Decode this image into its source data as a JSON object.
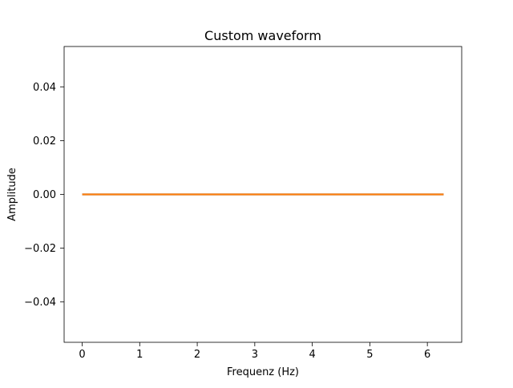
{
  "chart_data": {
    "type": "line",
    "title": "Custom waveform",
    "xlabel": "Frequenz (Hz)",
    "ylabel": "Amplitude",
    "xlim": [
      -0.314,
      6.597
    ],
    "ylim": [
      -0.055,
      0.055
    ],
    "xticks": [
      0,
      1,
      2,
      3,
      4,
      5,
      6
    ],
    "xtick_labels": [
      "0",
      "1",
      "2",
      "3",
      "4",
      "5",
      "6"
    ],
    "yticks": [
      -0.04,
      -0.02,
      0.0,
      0.02,
      0.04
    ],
    "ytick_labels": [
      "−0.04",
      "−0.02",
      "0.00",
      "0.02",
      "0.04"
    ],
    "grid": false,
    "legend": false,
    "series": [
      {
        "color": "#1f77b4",
        "x": [
          0,
          6.283
        ],
        "y": [
          0,
          0
        ]
      },
      {
        "color": "#ff7f0e",
        "x": [
          0,
          6.283
        ],
        "y": [
          0,
          0
        ]
      }
    ]
  }
}
